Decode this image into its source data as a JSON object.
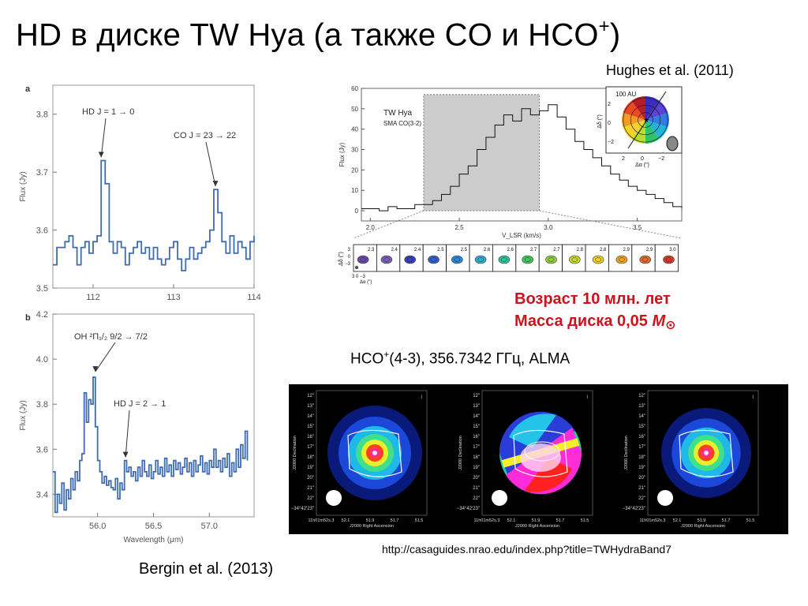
{
  "title": {
    "main": "HD в диске TW Hya (а также CO и HCO",
    "sup": "+",
    "close": ")"
  },
  "citations": {
    "hughes": "Hughes et al. (2011)",
    "bergin": "Bergin et al. (2013)"
  },
  "facts": {
    "age": "Возраст 10 млн. лет",
    "mass_prefix": "Масса диска 0,05 ",
    "mass_symbol": "M",
    "mass_sun": "⊙"
  },
  "hco_caption": {
    "pre": "HCO",
    "sup": "+",
    "rest": "(4-3), 356.7342 ГГц, ALMA"
  },
  "url": "http://casaguides.nrao.edu/index.php?title=TWHydraBand7",
  "colors": {
    "spectrum_line": "#3f6bb3",
    "axis_text": "#555555",
    "highlight": "#d0101a"
  },
  "chart_data": [
    {
      "type": "line",
      "panel": "a",
      "xlabel": "",
      "ylabel": "Flux (Jy)",
      "xlim": [
        111.5,
        114
      ],
      "ylim": [
        3.5,
        3.85
      ],
      "xticks": [
        "112",
        "113",
        "114"
      ],
      "yticks": [
        "3.5",
        "3.6",
        "3.7",
        "3.8"
      ],
      "annotations": [
        {
          "text": "HD J = 1 → 0",
          "x": 112.1,
          "y": 3.72
        },
        {
          "text": "CO J = 23 → 22",
          "x": 113.52,
          "y": 3.67
        }
      ],
      "series": [
        {
          "x": [
            111.5,
            111.55,
            111.6,
            111.65,
            111.7,
            111.75,
            111.8,
            111.85,
            111.9,
            111.95,
            112.0,
            112.05,
            112.1,
            112.15,
            112.2,
            112.25,
            112.3,
            112.35,
            112.4,
            112.45,
            112.5,
            112.55,
            112.6,
            112.65,
            112.7,
            112.75,
            112.8,
            112.85,
            112.9,
            112.95,
            113.0,
            113.05,
            113.1,
            113.15,
            113.2,
            113.25,
            113.3,
            113.35,
            113.4,
            113.45,
            113.5,
            113.55,
            113.6,
            113.65,
            113.7,
            113.75,
            113.8,
            113.85,
            113.9,
            113.95,
            114.0
          ],
          "values": [
            3.54,
            3.57,
            3.57,
            3.58,
            3.59,
            3.57,
            3.54,
            3.57,
            3.58,
            3.56,
            3.58,
            3.59,
            3.72,
            3.68,
            3.58,
            3.56,
            3.58,
            3.57,
            3.54,
            3.56,
            3.57,
            3.58,
            3.56,
            3.57,
            3.55,
            3.57,
            3.55,
            3.54,
            3.55,
            3.57,
            3.58,
            3.55,
            3.53,
            3.55,
            3.57,
            3.55,
            3.56,
            3.57,
            3.58,
            3.6,
            3.67,
            3.63,
            3.58,
            3.56,
            3.59,
            3.56,
            3.58,
            3.57,
            3.55,
            3.58,
            3.59
          ]
        }
      ]
    },
    {
      "type": "line",
      "panel": "b",
      "xlabel": "Wavelength (μm)",
      "ylabel": "Flux (Jy)",
      "xlim": [
        55.6,
        57.4
      ],
      "ylim": [
        3.3,
        4.2
      ],
      "xticks": [
        "56.0",
        "56.5",
        "57.0"
      ],
      "yticks": [
        "3.4",
        "3.6",
        "3.8",
        "4.0",
        "4.2"
      ],
      "annotations": [
        {
          "text": "OH ²Π₁/₂ 9/2 → 7/2",
          "x": 55.98,
          "y": 3.93
        },
        {
          "text": "HD J = 2 → 1",
          "x": 56.25,
          "y": 3.55
        }
      ],
      "series": [
        {
          "x": [
            55.6,
            55.62,
            55.64,
            55.66,
            55.68,
            55.7,
            55.72,
            55.74,
            55.76,
            55.78,
            55.8,
            55.82,
            55.84,
            55.86,
            55.88,
            55.9,
            55.92,
            55.94,
            55.96,
            55.98,
            56.0,
            56.02,
            56.04,
            56.06,
            56.08,
            56.1,
            56.12,
            56.14,
            56.16,
            56.18,
            56.2,
            56.22,
            56.24,
            56.26,
            56.28,
            56.3,
            56.32,
            56.34,
            56.36,
            56.38,
            56.4,
            56.42,
            56.44,
            56.46,
            56.48,
            56.5,
            56.52,
            56.54,
            56.56,
            56.58,
            56.6,
            56.62,
            56.64,
            56.66,
            56.68,
            56.7,
            56.72,
            56.74,
            56.76,
            56.78,
            56.8,
            56.82,
            56.84,
            56.86,
            56.88,
            56.9,
            56.92,
            56.94,
            56.96,
            56.98,
            57.0,
            57.02,
            57.04,
            57.06,
            57.08,
            57.1,
            57.12,
            57.14,
            57.16,
            57.18,
            57.2,
            57.22,
            57.24,
            57.26,
            57.28,
            57.3,
            57.32,
            57.34
          ],
          "values": [
            3.5,
            3.32,
            3.4,
            3.36,
            3.45,
            3.33,
            3.42,
            3.38,
            3.47,
            3.42,
            3.5,
            3.46,
            3.55,
            3.58,
            3.85,
            3.72,
            3.82,
            3.8,
            3.92,
            3.7,
            3.55,
            3.5,
            3.45,
            3.48,
            3.44,
            3.46,
            3.43,
            3.42,
            3.47,
            3.38,
            3.45,
            3.42,
            3.55,
            3.5,
            3.52,
            3.48,
            3.5,
            3.46,
            3.52,
            3.48,
            3.55,
            3.5,
            3.48,
            3.53,
            3.47,
            3.5,
            3.55,
            3.49,
            3.52,
            3.48,
            3.56,
            3.5,
            3.53,
            3.48,
            3.55,
            3.51,
            3.54,
            3.49,
            3.52,
            3.56,
            3.5,
            3.54,
            3.48,
            3.55,
            3.5,
            3.53,
            3.57,
            3.5,
            3.54,
            3.49,
            3.55,
            3.52,
            3.6,
            3.52,
            3.55,
            3.5,
            3.56,
            3.52,
            3.58,
            3.48,
            3.54,
            3.5,
            3.6,
            3.52,
            3.62,
            3.56,
            3.68,
            3.55
          ]
        }
      ]
    },
    {
      "type": "line",
      "panel": "TW Hya SMA CO(3-2)",
      "title": "TW Hya",
      "subtitle": "SMA CO(3-2)",
      "xlabel": "V_LSR (km/s)",
      "ylabel": "Flux (Jy)",
      "xlim": [
        1.95,
        3.75
      ],
      "ylim": [
        -5,
        60
      ],
      "xticks": [
        "2.0",
        "2.5",
        "3.0",
        "3.5"
      ],
      "yticks": [
        "0",
        "10",
        "20",
        "30",
        "40",
        "50",
        "60"
      ],
      "shaded_range": [
        2.3,
        2.95
      ],
      "series": [
        {
          "x": [
            1.95,
            2.0,
            2.05,
            2.1,
            2.15,
            2.2,
            2.25,
            2.3,
            2.35,
            2.4,
            2.45,
            2.5,
            2.55,
            2.6,
            2.65,
            2.7,
            2.75,
            2.8,
            2.85,
            2.9,
            2.95,
            3.0,
            3.05,
            3.1,
            3.15,
            3.2,
            3.25,
            3.3,
            3.35,
            3.4,
            3.45,
            3.5,
            3.55,
            3.6,
            3.65,
            3.7,
            3.75
          ],
          "values": [
            1,
            1,
            0,
            2,
            1,
            1,
            3,
            3,
            5,
            8,
            12,
            18,
            22,
            30,
            36,
            42,
            47,
            44,
            50,
            47,
            49,
            52,
            46,
            40,
            34,
            30,
            26,
            22,
            18,
            15,
            12,
            10,
            8,
            6,
            4,
            2,
            1
          ]
        }
      ]
    }
  ],
  "co_spectrum": {
    "title": "TW Hya",
    "subtitle": "SMA CO(3-2)",
    "inset_scale": "100 AU",
    "inset_ylabel": "Δδ (\")",
    "inset_xlabel": "Δα (\")",
    "inset_xticks": [
      "2",
      "0",
      "−2"
    ],
    "inset_yticks": [
      "2",
      "0",
      "−2"
    ]
  },
  "channel_strip": {
    "ylabel": "Δδ (\")",
    "xlabel": "Δα (\")",
    "yticks": [
      "3",
      "0",
      "−3"
    ],
    "xticks": "3  0 −3",
    "velocities": [
      "2.3",
      "2.4",
      "2.4",
      "2.5",
      "2.5",
      "2.6",
      "2.6",
      "2.7",
      "2.7",
      "2.8",
      "2.8",
      "2.9",
      "2.9",
      "3.0"
    ]
  },
  "alma_panels": {
    "dec_label": "J2000 Declination",
    "ra_label": "J2000 Right Ascension",
    "dec_ticks": [
      "12\"",
      "13\"",
      "14\"",
      "15\"",
      "16\"",
      "17\"",
      "18\"",
      "19\"",
      "20\"",
      "21\"",
      "22\"",
      "−34°42'23\""
    ],
    "ra_ticks": [
      "11h01m52s.3",
      "52.1",
      "51.9",
      "51.7",
      "51.5"
    ]
  },
  "panel_labels": {
    "a": "a",
    "b": "b"
  }
}
